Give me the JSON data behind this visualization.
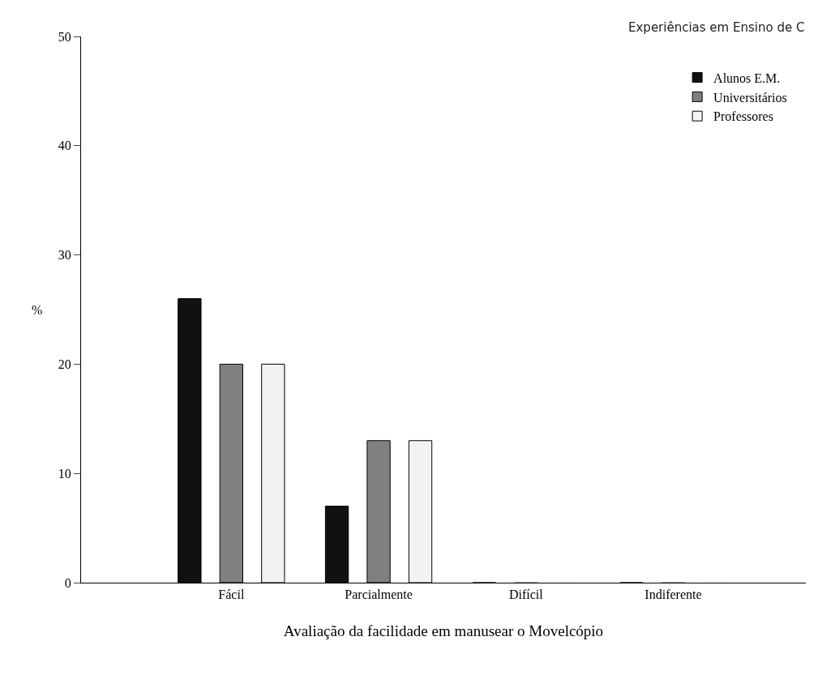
{
  "chart_data": {
    "type": "bar",
    "xlabel": "Avaliação da facilidade em manusear o Movelcópio",
    "ylabel": "%",
    "categories": [
      "Fácil",
      "Parcialmente",
      "Difícil",
      "Indiferente"
    ],
    "series": [
      {
        "name": "Alunos E.M.",
        "color": "#111111",
        "values": [
          26,
          7,
          0,
          0
        ]
      },
      {
        "name": "Universitários",
        "color": "#808080",
        "values": [
          20,
          13,
          0,
          0
        ]
      },
      {
        "name": "Professores",
        "color": "#f2f2f2",
        "values": [
          20,
          13,
          0,
          0
        ]
      }
    ],
    "ylim": [
      0,
      50
    ],
    "yticks": [
      0,
      10,
      20,
      30,
      40,
      50
    ],
    "legend": "top right",
    "annotations": [
      "Experiências em Ensino de C"
    ]
  }
}
